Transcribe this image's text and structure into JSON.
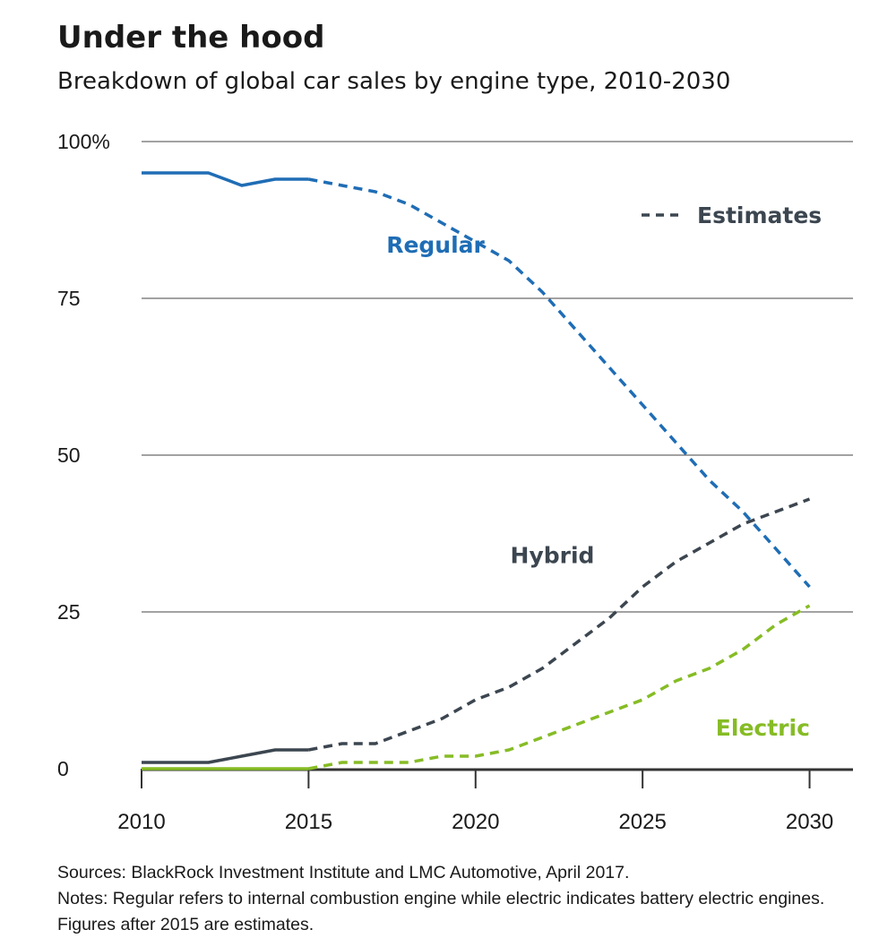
{
  "title": "Under the hood",
  "subtitle": "Breakdown of global car sales by engine type, 2010-2030",
  "sources": "Sources: BlackRock Investment Institute and LMC Automotive, April 2017.",
  "notes": "Notes: Regular refers to internal combustion engine while electric indicates battery electric engines. Figures after 2015 are estimates.",
  "colors": {
    "regular": "#1f6db5",
    "hybrid": "#3c4650",
    "electric": "#86bc25",
    "grid": "#444444"
  },
  "chart_data": {
    "type": "line",
    "title": "Under the hood",
    "subtitle": "Breakdown of global car sales by engine type, 2010-2030",
    "xlabel": "",
    "ylabel": "",
    "xlim": [
      2010,
      2031.3
    ],
    "ylim": [
      0,
      100
    ],
    "x_ticks": [
      2010,
      2015,
      2020,
      2025,
      2030
    ],
    "x_tick_labels": [
      "2010",
      "2015",
      "2020",
      "2025",
      "2030"
    ],
    "y_ticks": [
      0,
      25,
      50,
      75,
      100
    ],
    "y_tick_labels": [
      "0",
      "25",
      "50",
      "75",
      "100%"
    ],
    "estimate_start": 2015,
    "legend": {
      "label": "Estimates",
      "position": "top-right"
    },
    "series": [
      {
        "name": "Regular",
        "label": "Regular",
        "color": "#1f6db5",
        "x": [
          2010,
          2011,
          2012,
          2013,
          2014,
          2015,
          2016,
          2017,
          2018,
          2019,
          2020,
          2021,
          2022,
          2023,
          2024,
          2025,
          2026,
          2027,
          2028,
          2029,
          2030
        ],
        "y": [
          95,
          95,
          95,
          93,
          94,
          94,
          93,
          92,
          90,
          87,
          84,
          81,
          76,
          70,
          64,
          58,
          52,
          46,
          41,
          35,
          29
        ]
      },
      {
        "name": "Hybrid",
        "label": "Hybrid",
        "color": "#3c4650",
        "x": [
          2010,
          2011,
          2012,
          2013,
          2014,
          2015,
          2016,
          2017,
          2018,
          2019,
          2020,
          2021,
          2022,
          2023,
          2024,
          2025,
          2026,
          2027,
          2028,
          2029,
          2030
        ],
        "y": [
          1,
          1,
          1,
          2,
          3,
          3,
          4,
          4,
          6,
          8,
          11,
          13,
          16,
          20,
          24,
          29,
          33,
          36,
          39,
          41,
          43
        ]
      },
      {
        "name": "Electric",
        "label": "Electric",
        "color": "#86bc25",
        "x": [
          2010,
          2011,
          2012,
          2013,
          2014,
          2015,
          2016,
          2017,
          2018,
          2019,
          2020,
          2021,
          2022,
          2023,
          2024,
          2025,
          2026,
          2027,
          2028,
          2029,
          2030
        ],
        "y": [
          0,
          0,
          0,
          0,
          0,
          0,
          1,
          1,
          1,
          2,
          2,
          3,
          5,
          7,
          9,
          11,
          14,
          16,
          19,
          23,
          26
        ]
      }
    ]
  }
}
